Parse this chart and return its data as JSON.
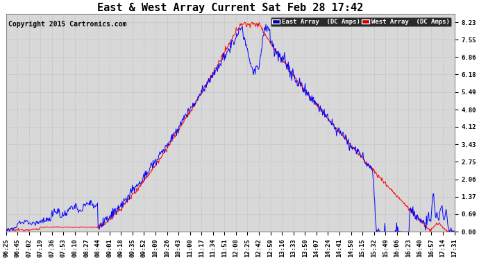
{
  "title": "East & West Array Current Sat Feb 28 17:42",
  "copyright": "Copyright 2015 Cartronics.com",
  "legend_east": "East Array  (DC Amps)",
  "legend_west": "West Array  (DC Amps)",
  "east_color": "#0000FF",
  "west_color": "#FF0000",
  "legend_east_bg": "#0000AA",
  "legend_west_bg": "#CC0000",
  "background_color": "#FFFFFF",
  "plot_bg_color": "#D8D8D8",
  "grid_color": "#BBBBBB",
  "yticks": [
    0.0,
    0.69,
    1.37,
    2.06,
    2.75,
    3.43,
    4.12,
    4.8,
    5.49,
    6.18,
    6.86,
    7.55,
    8.23
  ],
  "ylim": [
    -0.05,
    8.6
  ],
  "xtick_labels": [
    "06:25",
    "06:45",
    "07:02",
    "07:19",
    "07:36",
    "07:53",
    "08:10",
    "08:27",
    "08:44",
    "09:01",
    "09:18",
    "09:35",
    "09:52",
    "10:09",
    "10:26",
    "10:43",
    "11:00",
    "11:17",
    "11:34",
    "11:51",
    "12:08",
    "12:25",
    "12:42",
    "12:59",
    "13:16",
    "13:33",
    "13:50",
    "14:07",
    "14:24",
    "14:41",
    "14:58",
    "15:15",
    "15:32",
    "15:49",
    "16:06",
    "16:23",
    "16:40",
    "16:57",
    "17:14",
    "17:31"
  ],
  "title_fontsize": 11,
  "tick_fontsize": 6.5,
  "copyright_fontsize": 7
}
